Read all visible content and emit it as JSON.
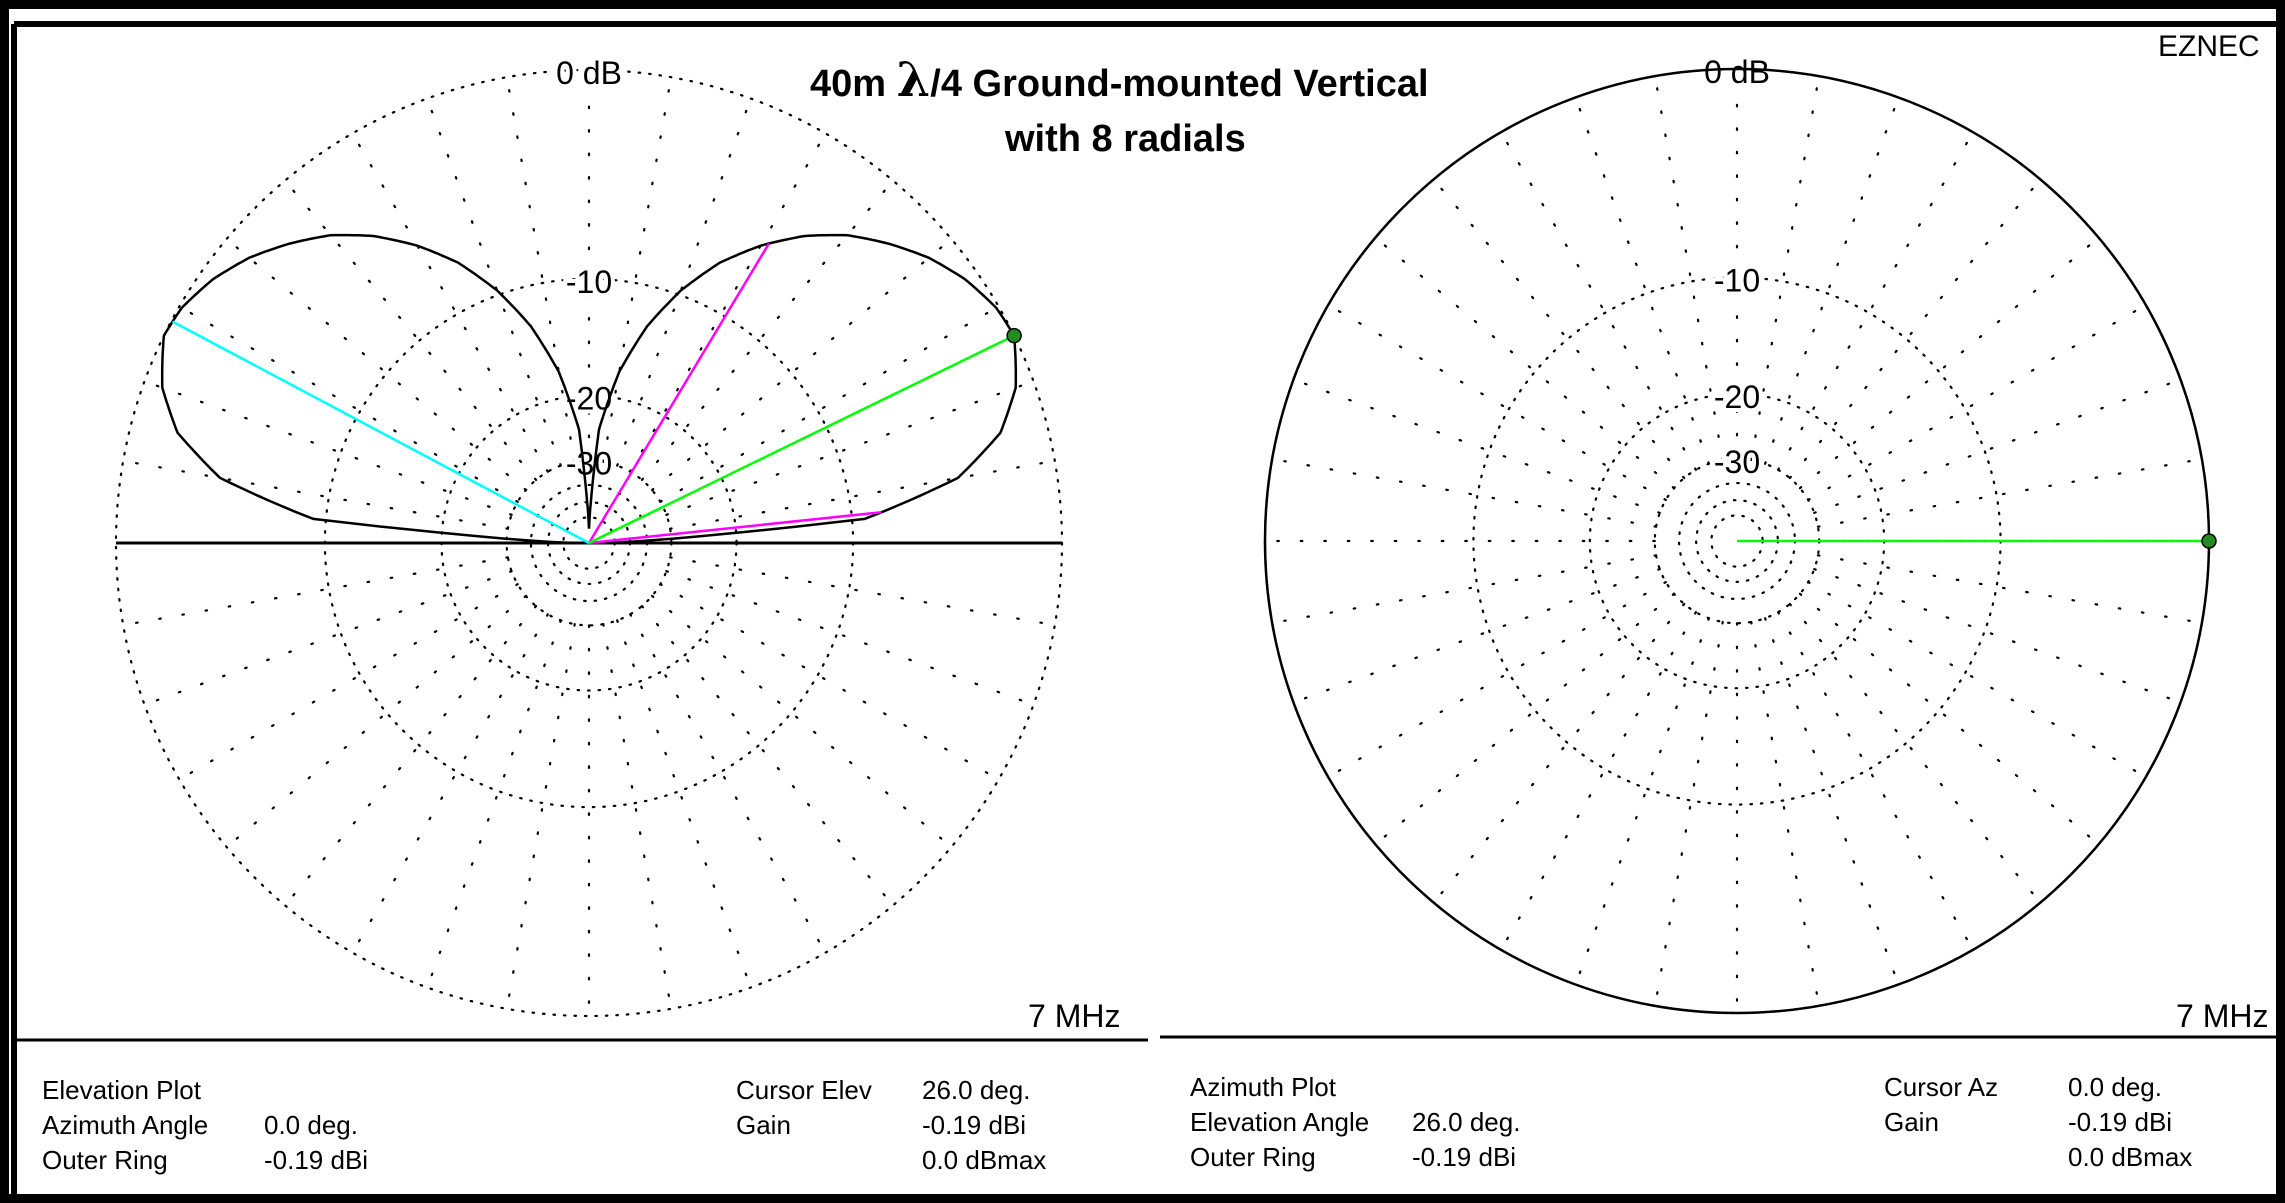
{
  "title": {
    "prefix": "40m",
    "lambda": "λ",
    "rest": "/4 Ground-mounted Vertical",
    "line2": "with 8 radials"
  },
  "brand": "EZNEC",
  "colors": {
    "pattern": "#000000",
    "grid": "#000000",
    "cursor": "#00ff00",
    "beamwidth": "#ff00ff",
    "cursor2": "#00ffff",
    "marker": "#228b22"
  },
  "chart_data": [
    {
      "type": "polar",
      "name": "Elevation Plot",
      "frequency_label": "7 MHz",
      "ring_labels": [
        "0 dB",
        "-10",
        "-20",
        "-30"
      ],
      "scale": "ARRL log periodic, rings every -10 dB relative to outer ring",
      "outer_ring_dbi": -0.19,
      "elevation_deg": [
        0,
        5,
        10,
        15,
        20,
        26,
        30,
        35,
        40,
        45,
        50,
        55,
        60,
        65,
        70,
        75,
        80,
        85,
        90
      ],
      "gain_dbmax": [
        -60,
        -9.2,
        -4.0,
        -1.8,
        -0.7,
        0.0,
        -0.1,
        -0.5,
        -1.1,
        -1.9,
        -2.8,
        -4.0,
        -5.5,
        -7.3,
        -9.7,
        -12.8,
        -17.2,
        -24.5,
        -60
      ],
      "cursor_elevation_deg": 26.0,
      "beamwidth_lines_deg": [
        6,
        59
      ],
      "info": {
        "plot_type": "Elevation Plot",
        "secondary_label": "Azimuth Angle",
        "secondary_value": "0.0 deg.",
        "outer_ring_label": "Outer Ring",
        "outer_ring_value": "-0.19 dBi",
        "cursor_label": "Cursor Elev",
        "cursor_value": "26.0 deg.",
        "gain_label": "Gain",
        "gain_value": "-0.19 dBi",
        "gain_rel": "0.0 dBmax"
      }
    },
    {
      "type": "polar",
      "name": "Azimuth Plot",
      "frequency_label": "7 MHz",
      "ring_labels": [
        "0 dB",
        "-10",
        "-20",
        "-30"
      ],
      "outer_ring_dbi": -0.19,
      "gain_dbmax_all_azimuths": 0.0,
      "cursor_azimuth_deg": 0.0,
      "info": {
        "plot_type": "Azimuth Plot",
        "secondary_label": "Elevation Angle",
        "secondary_value": "26.0 deg.",
        "outer_ring_label": "Outer Ring",
        "outer_ring_value": "-0.19 dBi",
        "cursor_label": "Cursor Az",
        "cursor_value": "0.0 deg.",
        "gain_label": "Gain",
        "gain_value": "-0.19 dBi",
        "gain_rel": "0.0 dBmax"
      }
    }
  ]
}
